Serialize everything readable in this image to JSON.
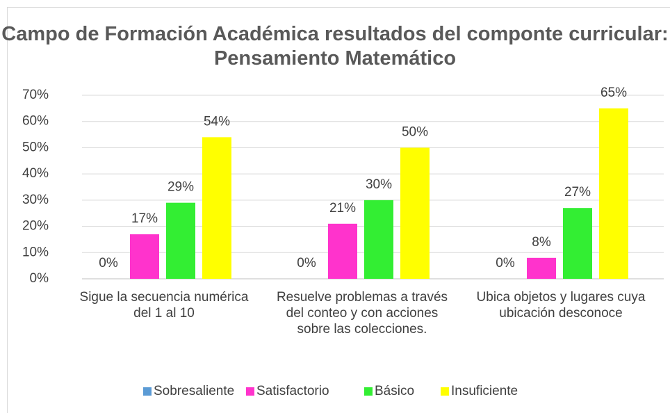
{
  "chart_data": {
    "type": "bar",
    "title": "Campo de Formación Académica resultados del componte curricular: Pensamiento Matemático",
    "categories": [
      "Sigue la secuencia numérica del 1 al 10",
      "Resuelve problemas a través del conteo y con acciones sobre las colecciones.",
      "Ubica objetos y lugares cuya ubicación desconoce"
    ],
    "series": [
      {
        "name": "Sobresaliente",
        "color": "#5b9bd5",
        "values": [
          0,
          0,
          0
        ],
        "value_labels": [
          "0%",
          "0%",
          "0%"
        ]
      },
      {
        "name": "Satisfactorio",
        "color": "#ff33cc",
        "values": [
          17,
          21,
          8
        ],
        "value_labels": [
          "17%",
          "21%",
          "8%"
        ]
      },
      {
        "name": "Básico",
        "color": "#33ee33",
        "values": [
          29,
          30,
          27
        ],
        "value_labels": [
          "29%",
          "30%",
          "27%"
        ]
      },
      {
        "name": "Insuficiente",
        "color": "#ffff00",
        "values": [
          54,
          50,
          65
        ],
        "value_labels": [
          "54%",
          "50%",
          "65%"
        ]
      }
    ],
    "ylim": [
      0,
      70
    ],
    "yticks": [
      {
        "value": 0,
        "label": "0%"
      },
      {
        "value": 10,
        "label": "10%"
      },
      {
        "value": 20,
        "label": "20%"
      },
      {
        "value": 30,
        "label": "30%"
      },
      {
        "value": 40,
        "label": "40%"
      },
      {
        "value": 50,
        "label": "50%"
      },
      {
        "value": 60,
        "label": "60%"
      },
      {
        "value": 70,
        "label": "70%"
      }
    ],
    "grid": true,
    "legend": "bottom"
  }
}
